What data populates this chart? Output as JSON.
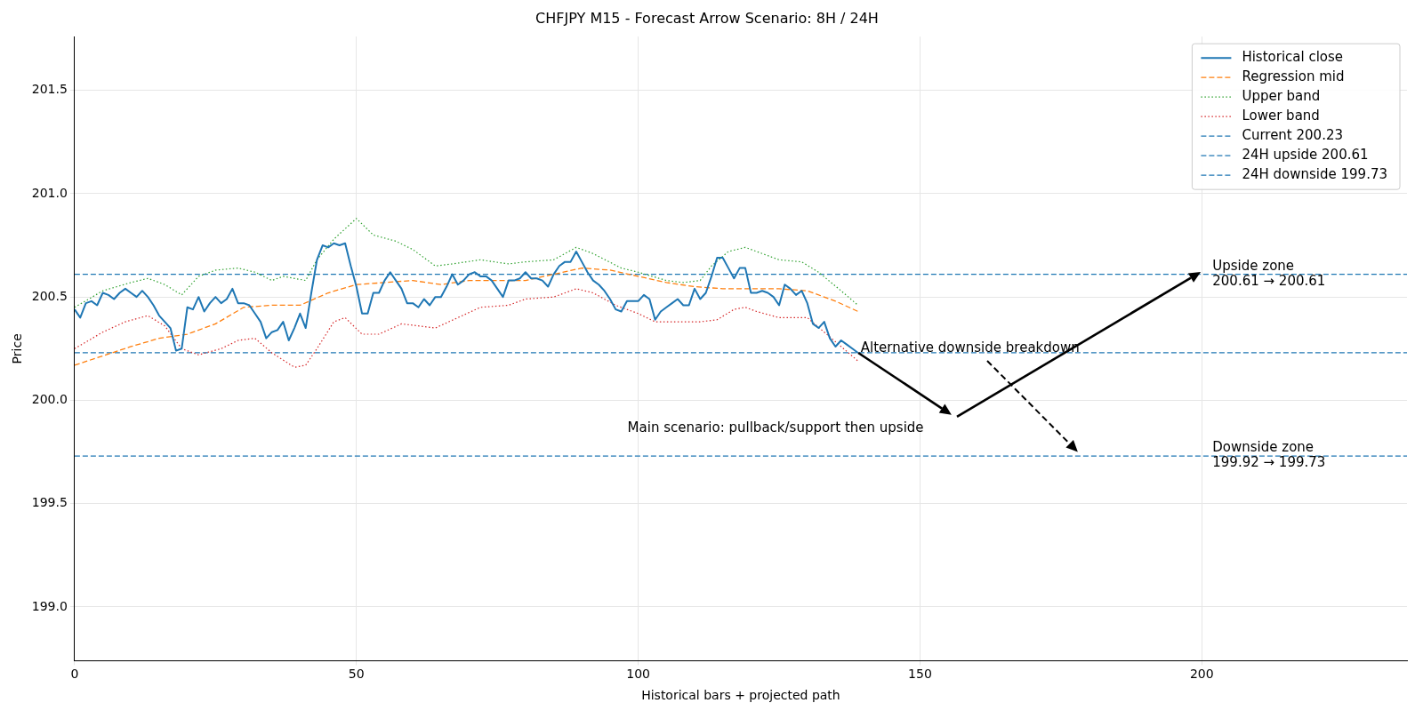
{
  "chart_data": {
    "type": "line",
    "title": "CHFJPY M15 - Forecast Arrow Scenario: 8H / 24H",
    "xlabel": "Historical bars + projected path",
    "ylabel": "Price",
    "x": [
      0,
      1,
      2,
      3,
      4,
      5,
      6,
      7,
      8,
      9,
      10,
      11,
      12,
      13,
      14,
      15,
      16,
      17,
      18,
      19,
      20,
      21,
      22,
      23,
      24,
      25,
      26,
      27,
      28,
      29,
      30,
      31,
      32,
      33,
      34,
      35,
      36,
      37,
      38,
      39,
      40,
      41,
      42,
      43,
      44,
      45,
      46,
      47,
      48,
      49,
      50,
      51,
      52,
      53,
      54,
      55,
      56,
      57,
      58,
      59,
      60,
      61,
      62,
      63,
      64,
      65,
      66,
      67,
      68,
      69,
      70,
      71,
      72,
      73,
      74,
      75,
      76,
      77,
      78,
      79,
      80,
      81,
      82,
      83,
      84,
      85,
      86,
      87,
      88,
      89,
      90,
      91,
      92,
      93,
      94,
      95,
      96,
      97,
      98,
      99,
      100,
      101,
      102,
      103,
      104,
      105,
      106,
      107,
      108,
      109,
      110,
      111,
      112,
      113,
      114,
      115,
      116,
      117,
      118,
      119,
      120,
      121,
      122,
      123,
      124,
      125,
      126,
      127,
      128,
      129,
      130,
      131,
      132,
      133,
      134,
      135,
      136,
      137,
      138,
      139
    ],
    "series": [
      {
        "name": "Historical close",
        "color": "#1f77b4",
        "line_style": "solid",
        "values": [
          200.44,
          200.4,
          200.47,
          200.48,
          200.46,
          200.52,
          200.51,
          200.49,
          200.52,
          200.54,
          200.52,
          200.5,
          200.53,
          200.5,
          200.46,
          200.41,
          200.38,
          200.35,
          200.24,
          200.25,
          200.45,
          200.44,
          200.5,
          200.43,
          200.47,
          200.5,
          200.47,
          200.49,
          200.54,
          200.47,
          200.47,
          200.46,
          200.42,
          200.38,
          200.3,
          200.33,
          200.34,
          200.38,
          200.29,
          200.35,
          200.42,
          200.35,
          200.52,
          200.68,
          200.75,
          200.74,
          200.76,
          200.75,
          200.76,
          200.65,
          200.55,
          200.42,
          200.42,
          200.52,
          200.52,
          200.58,
          200.62,
          200.58,
          200.54,
          200.47,
          200.47,
          200.45,
          200.49,
          200.46,
          200.5,
          200.5,
          200.55,
          200.61,
          200.56,
          200.58,
          200.61,
          200.62,
          200.6,
          200.6,
          200.58,
          200.54,
          200.5,
          200.58,
          200.58,
          200.59,
          200.62,
          200.59,
          200.59,
          200.58,
          200.55,
          200.61,
          200.65,
          200.67,
          200.67,
          200.72,
          200.67,
          200.62,
          200.58,
          200.56,
          200.53,
          200.49,
          200.44,
          200.43,
          200.48,
          200.48,
          200.48,
          200.51,
          200.49,
          200.39,
          200.43,
          200.45,
          200.47,
          200.49,
          200.46,
          200.46,
          200.54,
          200.49,
          200.52,
          200.6,
          200.69,
          200.69,
          200.64,
          200.59,
          200.64,
          200.64,
          200.52,
          200.52,
          200.53,
          200.52,
          200.5,
          200.46,
          200.56,
          200.54,
          200.51,
          200.53,
          200.47,
          200.37,
          200.35,
          200.38,
          200.3,
          200.26,
          200.29,
          200.27,
          200.25,
          200.23
        ]
      },
      {
        "name": "Regression mid",
        "color": "#ff7f0e",
        "line_style": "dashed",
        "x": [
          0,
          10,
          15,
          20,
          25,
          30,
          35,
          40,
          45,
          50,
          55,
          60,
          65,
          70,
          75,
          80,
          85,
          90,
          95,
          100,
          105,
          110,
          115,
          120,
          125,
          130,
          135,
          139
        ],
        "values": [
          200.17,
          200.26,
          200.3,
          200.32,
          200.37,
          200.45,
          200.46,
          200.46,
          200.52,
          200.56,
          200.57,
          200.58,
          200.56,
          200.58,
          200.58,
          200.58,
          200.61,
          200.64,
          200.63,
          200.6,
          200.57,
          200.55,
          200.54,
          200.54,
          200.54,
          200.53,
          200.48,
          200.43
        ]
      },
      {
        "name": "Upper band",
        "color": "#2ca02c",
        "line_style": "dotted",
        "x": [
          0,
          5,
          10,
          13,
          16,
          19,
          22,
          25,
          29,
          32,
          35,
          37,
          41,
          43,
          46,
          50,
          53,
          57,
          60,
          64,
          67,
          72,
          77,
          80,
          85,
          89,
          92,
          97,
          100,
          105,
          108,
          111,
          113,
          116,
          119,
          122,
          125,
          129,
          132,
          136,
          139
        ],
        "values": [
          200.45,
          200.53,
          200.57,
          200.59,
          200.56,
          200.51,
          200.6,
          200.63,
          200.64,
          200.62,
          200.58,
          200.6,
          200.58,
          200.68,
          200.78,
          200.88,
          200.8,
          200.77,
          200.73,
          200.65,
          200.66,
          200.68,
          200.66,
          200.67,
          200.68,
          200.74,
          200.71,
          200.64,
          200.62,
          200.58,
          200.57,
          200.58,
          200.65,
          200.72,
          200.74,
          200.71,
          200.68,
          200.67,
          200.62,
          200.53,
          200.46
        ]
      },
      {
        "name": "Lower band",
        "color": "#d62728",
        "line_style": "dotted",
        "x": [
          0,
          5,
          9,
          13,
          16,
          19,
          22,
          26,
          29,
          32,
          35,
          39,
          41,
          43,
          46,
          48,
          51,
          54,
          58,
          64,
          68,
          72,
          77,
          80,
          85,
          89,
          92,
          96,
          100,
          103,
          108,
          111,
          114,
          117,
          119,
          121,
          125,
          130,
          133,
          136,
          139
        ],
        "values": [
          200.25,
          200.33,
          200.38,
          200.41,
          200.36,
          200.25,
          200.22,
          200.25,
          200.29,
          200.3,
          200.23,
          200.16,
          200.17,
          200.25,
          200.38,
          200.4,
          200.32,
          200.32,
          200.37,
          200.35,
          200.4,
          200.45,
          200.46,
          200.49,
          200.5,
          200.54,
          200.52,
          200.46,
          200.42,
          200.38,
          200.38,
          200.38,
          200.39,
          200.44,
          200.45,
          200.43,
          200.4,
          200.4,
          200.33,
          200.26,
          200.19
        ]
      },
      {
        "name": "Current 200.23",
        "color": "#1f77b4",
        "line_style": "dashed",
        "x": [
          0,
          236.4
        ],
        "values": [
          200.23,
          200.23
        ]
      },
      {
        "name": "24H upside 200.61",
        "color": "#1f77b4",
        "line_style": "dashed",
        "x": [
          0,
          236.4
        ],
        "values": [
          200.61,
          200.61
        ]
      },
      {
        "name": "24H downside 199.73",
        "color": "#1f77b4",
        "line_style": "dashed",
        "x": [
          0,
          236.4
        ],
        "values": [
          199.73,
          199.73
        ]
      }
    ],
    "annotations": [
      "Main scenario: pullback/support then upside",
      "Alternative downside breakdown",
      "Upside zone\n200.61 → 200.61",
      "Downside zone\n199.92 → 199.73"
    ],
    "xlim": [
      0,
      236.4
    ],
    "ylim": [
      198.74,
      201.76
    ],
    "xticks": [
      0,
      50,
      100,
      150,
      200
    ],
    "yticks": [
      {
        "value": 199,
        "label": "199.0"
      },
      {
        "value": 199.5,
        "label": "199.5"
      },
      {
        "value": 200,
        "label": "200.0"
      },
      {
        "value": 200.5,
        "label": "200.5"
      },
      {
        "value": 201,
        "label": "201.0"
      },
      {
        "value": 201.5,
        "label": "201.5"
      }
    ],
    "grid": true,
    "legend": "top right",
    "marker": "none"
  }
}
